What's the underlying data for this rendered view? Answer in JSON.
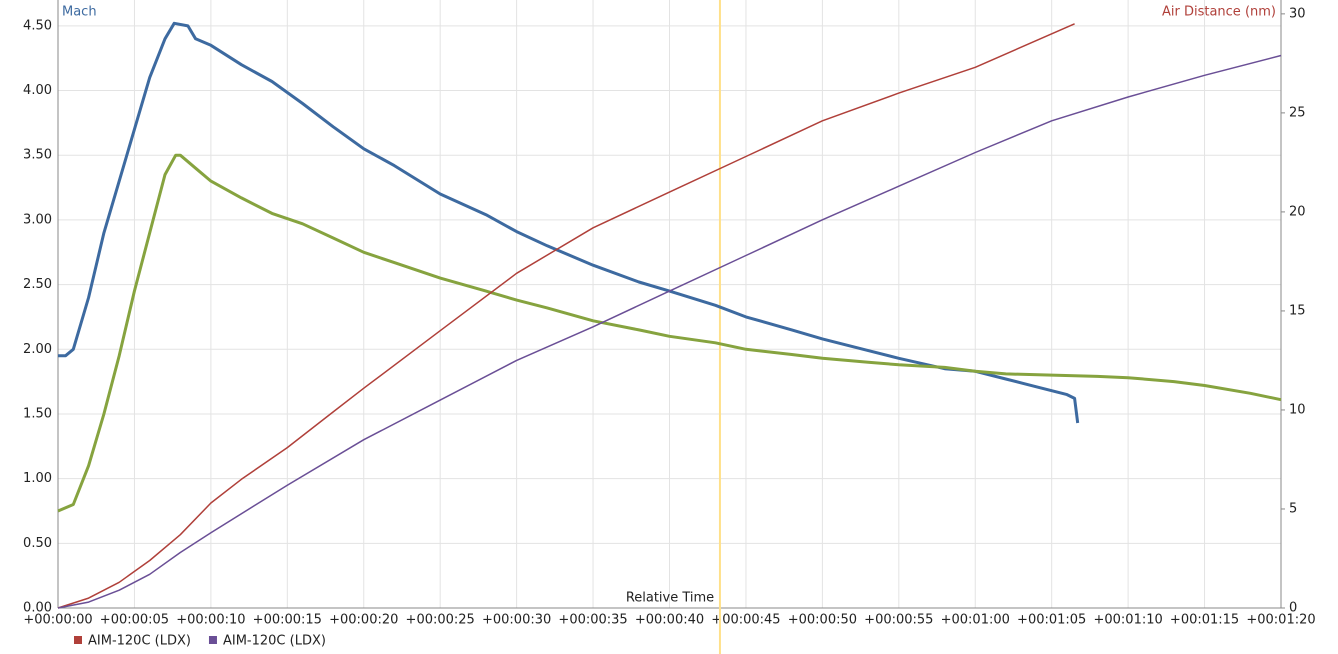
{
  "chart_data": {
    "type": "line",
    "y_title": "Mach",
    "y2_title": "Air Distance (nm)",
    "x_title": "Relative Time",
    "xlim": [
      0,
      80
    ],
    "xticks": [
      {
        "value": 0,
        "label": "+00:00:00"
      },
      {
        "value": 5,
        "label": "+00:00:05"
      },
      {
        "value": 10,
        "label": "+00:00:10"
      },
      {
        "value": 15,
        "label": "+00:00:15"
      },
      {
        "value": 20,
        "label": "+00:00:20"
      },
      {
        "value": 25,
        "label": "+00:00:25"
      },
      {
        "value": 30,
        "label": "+00:00:30"
      },
      {
        "value": 35,
        "label": "+00:00:35"
      },
      {
        "value": 40,
        "label": "+00:00:40"
      },
      {
        "value": 45,
        "label": "+00:00:45"
      },
      {
        "value": 50,
        "label": "+00:00:50"
      },
      {
        "value": 55,
        "label": "+00:00:55"
      },
      {
        "value": 60,
        "label": "+00:01:00"
      },
      {
        "value": 65,
        "label": "+00:01:05"
      },
      {
        "value": 70,
        "label": "+00:01:10"
      },
      {
        "value": 75,
        "label": "+00:01:15"
      },
      {
        "value": 80,
        "label": "+00:01:20"
      }
    ],
    "ylim": [
      0,
      4.7
    ],
    "yticks": [
      {
        "value": 0,
        "label": "0.00"
      },
      {
        "value": 0.5,
        "label": "0.50"
      },
      {
        "value": 1,
        "label": "1.00"
      },
      {
        "value": 1.5,
        "label": "1.50"
      },
      {
        "value": 2,
        "label": "2.00"
      },
      {
        "value": 2.5,
        "label": "2.50"
      },
      {
        "value": 3,
        "label": "3.00"
      },
      {
        "value": 3.5,
        "label": "3.50"
      },
      {
        "value": 4,
        "label": "4.00"
      },
      {
        "value": 4.5,
        "label": "4.50"
      }
    ],
    "y2lim": [
      0,
      30.7
    ],
    "y2ticks": [
      0,
      5,
      10,
      15,
      20,
      25,
      30
    ],
    "grid": true,
    "cursor_x": 43.3,
    "legend": "bottom-left",
    "series": [
      {
        "color": "#3d6aa0",
        "axis": "y",
        "x": [
          0,
          0.5,
          1,
          2,
          3,
          4,
          5,
          6,
          7,
          7.6,
          8.5,
          9,
          10,
          12,
          14,
          16,
          18,
          20,
          22,
          25,
          28,
          30,
          32,
          35,
          38,
          40,
          43,
          45,
          48,
          50,
          53,
          55,
          58,
          60,
          62,
          64,
          66,
          66.5,
          66.7
        ],
        "values": [
          1.95,
          1.95,
          2.0,
          2.4,
          2.9,
          3.3,
          3.7,
          4.1,
          4.4,
          4.52,
          4.5,
          4.4,
          4.35,
          4.2,
          4.07,
          3.9,
          3.72,
          3.55,
          3.42,
          3.2,
          3.04,
          2.91,
          2.8,
          2.65,
          2.52,
          2.45,
          2.34,
          2.25,
          2.15,
          2.08,
          1.99,
          1.93,
          1.85,
          1.83,
          1.77,
          1.71,
          1.65,
          1.62,
          1.43
        ]
      },
      {
        "color": "#86a33f",
        "axis": "y",
        "x": [
          0,
          1,
          2,
          3,
          4,
          5,
          6,
          7,
          7.7,
          8,
          9,
          10,
          12,
          14,
          16,
          18,
          20,
          22,
          25,
          28,
          30,
          32,
          35,
          38,
          40,
          43,
          45,
          48,
          50,
          53,
          55,
          58,
          60,
          62,
          65,
          68,
          70,
          73,
          75,
          78,
          80
        ],
        "values": [
          0.75,
          0.8,
          1.1,
          1.5,
          1.95,
          2.45,
          2.9,
          3.35,
          3.5,
          3.5,
          3.4,
          3.3,
          3.17,
          3.05,
          2.97,
          2.86,
          2.75,
          2.67,
          2.55,
          2.45,
          2.38,
          2.32,
          2.22,
          2.15,
          2.1,
          2.05,
          2.0,
          1.96,
          1.93,
          1.9,
          1.88,
          1.86,
          1.83,
          1.81,
          1.8,
          1.79,
          1.78,
          1.75,
          1.72,
          1.66,
          1.61
        ]
      },
      {
        "name": "AIM-120C (LDX)",
        "color": "#b0403a",
        "axis": "y2",
        "x": [
          0,
          2,
          4,
          6,
          8,
          10,
          12,
          15,
          18,
          20,
          25,
          30,
          35,
          40,
          45,
          50,
          55,
          60,
          66.5
        ],
        "values": [
          0,
          0.5,
          1.3,
          2.4,
          3.7,
          5.3,
          6.5,
          8.1,
          9.9,
          11.1,
          14.0,
          16.9,
          19.2,
          21.0,
          22.8,
          24.6,
          26.0,
          27.3,
          29.5
        ]
      },
      {
        "name": "AIM-120C (LDX)",
        "color": "#6a4f96",
        "axis": "y2",
        "x": [
          0,
          2,
          4,
          6,
          8,
          10,
          15,
          20,
          25,
          30,
          35,
          40,
          45,
          50,
          55,
          60,
          65,
          70,
          75,
          80
        ],
        "values": [
          0,
          0.3,
          0.9,
          1.7,
          2.8,
          3.8,
          6.2,
          8.5,
          10.5,
          12.5,
          14.2,
          16.0,
          17.8,
          19.6,
          21.3,
          23.0,
          24.6,
          25.8,
          26.9,
          27.9
        ]
      }
    ]
  }
}
